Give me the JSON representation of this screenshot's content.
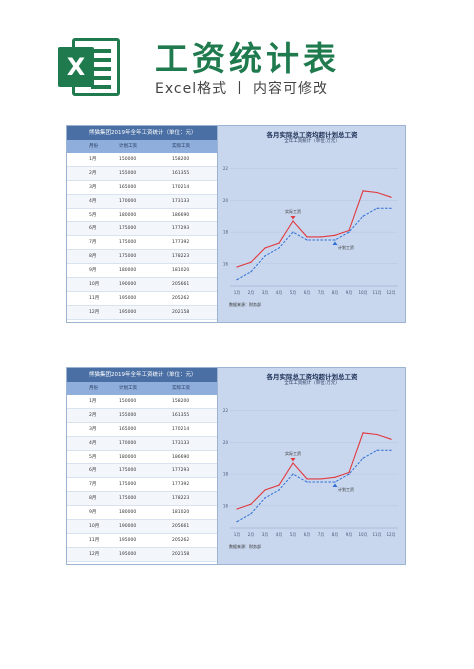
{
  "header": {
    "title": "工资统计表",
    "subtitle": "Excel格式 丨 内容可修改",
    "logo_letter": "X"
  },
  "sheet": {
    "table_title": "熊猫集团2019年全年工资统计（单位：元）",
    "columns": [
      "月份",
      "计划工资",
      "实际工资"
    ],
    "rows": [
      [
        "1月",
        "150000",
        "158200"
      ],
      [
        "2月",
        "155000",
        "161355"
      ],
      [
        "3月",
        "165000",
        "170214"
      ],
      [
        "4月",
        "170000",
        "173133"
      ],
      [
        "5月",
        "180000",
        "186690"
      ],
      [
        "6月",
        "175000",
        "177293"
      ],
      [
        "7月",
        "175000",
        "177392"
      ],
      [
        "8月",
        "175000",
        "178223"
      ],
      [
        "9月",
        "180000",
        "181020"
      ],
      [
        "10月",
        "190000",
        "205661"
      ],
      [
        "11月",
        "195000",
        "205262"
      ],
      [
        "12月",
        "195000",
        "202158"
      ]
    ],
    "source_label": "数据来源：财务部"
  },
  "chart_data": {
    "type": "line",
    "title": "各月实际总工资均超计划总工资",
    "subtitle": "全年工资统计（单位:万元）",
    "categories": [
      "1月",
      "2月",
      "3月",
      "4月",
      "5月",
      "6月",
      "7月",
      "8月",
      "9月",
      "10月",
      "11月",
      "12月"
    ],
    "series": [
      {
        "name": "实际工资",
        "values": [
          15.8,
          16.1,
          17.0,
          17.3,
          18.7,
          17.7,
          17.7,
          17.8,
          18.1,
          20.6,
          20.5,
          20.2
        ],
        "color": "#e0393e",
        "style": "solid"
      },
      {
        "name": "计划工资",
        "values": [
          15.0,
          15.5,
          16.5,
          17.0,
          18.0,
          17.5,
          17.5,
          17.5,
          18.0,
          19.0,
          19.5,
          19.5
        ],
        "color": "#2f6fd6",
        "style": "dashed"
      }
    ],
    "annotations": [
      {
        "text": "实际工资",
        "series": 0,
        "index": 4
      },
      {
        "text": "计划工资",
        "series": 1,
        "index": 7
      }
    ],
    "yticks": [
      16,
      18,
      20,
      22
    ],
    "ylim": [
      14.6,
      22.8
    ],
    "grid": true,
    "legend": "none"
  }
}
